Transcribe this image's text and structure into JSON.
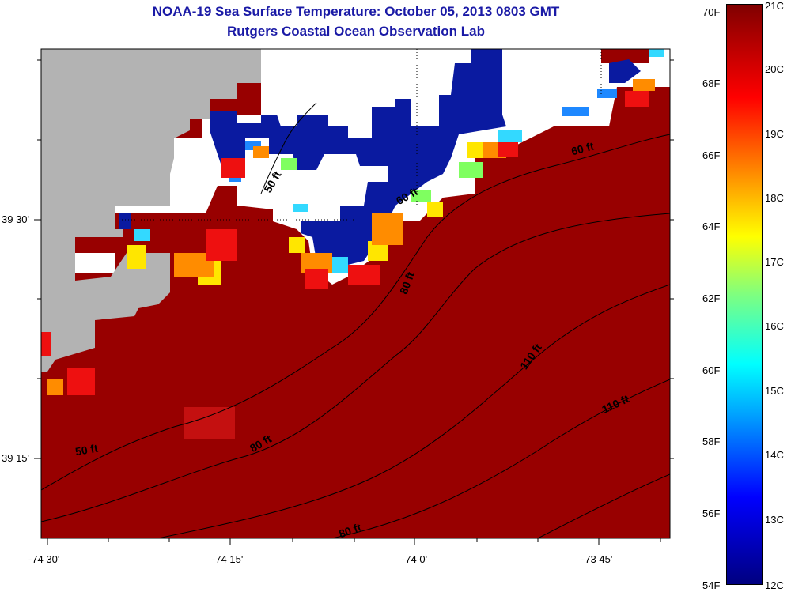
{
  "header": {
    "title": "NOAA-19 Sea Surface Temperature:  October 05, 2013 0803 GMT",
    "subtitle": "Rutgers Coastal Ocean Observation Lab"
  },
  "axes": {
    "x_ticks": [
      "-74 30'",
      "-74 15'",
      "-74 0'",
      "-73 45'"
    ],
    "y_ticks": [
      "39 30'",
      "39 15'"
    ]
  },
  "contour_labels": [
    "50 ft",
    "50 ft",
    "60 ft",
    "60 ft",
    "80 ft",
    "80 ft",
    "80 ft",
    "110 ft",
    "110 ft"
  ],
  "colorbar": {
    "f_labels": [
      "70F",
      "68F",
      "66F",
      "64F",
      "62F",
      "60F",
      "58F",
      "56F",
      "54F"
    ],
    "c_labels": [
      "21C",
      "20C",
      "19C",
      "18C",
      "17C",
      "16C",
      "15C",
      "14C",
      "13C",
      "12C"
    ]
  },
  "colors": {
    "warm_water": "#980000",
    "land": "#b3b3b3",
    "cloud": "#ffffff",
    "cold_water": "#0a1aa0",
    "title": "#1a1aa6"
  }
}
